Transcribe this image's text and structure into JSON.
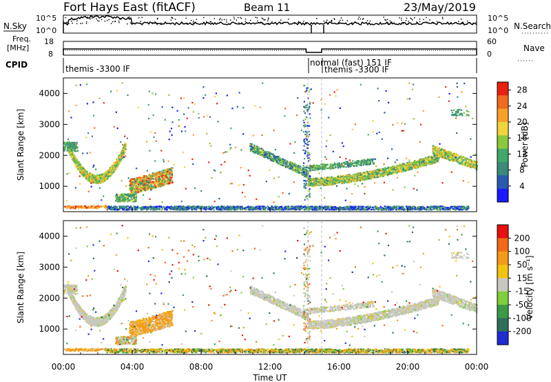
{
  "header": {
    "station": "Fort Hays East (fitACF)",
    "beam": "Beam 11",
    "date": "23/May/2019"
  },
  "status_panels": {
    "nsky_label": "N.Sky",
    "nsearch_label": "N.Search",
    "noise_ticks": [
      "10^5",
      "10^0"
    ],
    "freq_label_line1": "Freq.",
    "freq_label_line2": "[MHz]",
    "freq_ticks": [
      "18",
      "8"
    ],
    "nave_label": "Nave",
    "nave_ticks": [
      "60",
      "0"
    ],
    "cpid_label": "CPID",
    "cpid_segments": [
      {
        "text": "themis -3300 IF",
        "start_hour": 0.0
      },
      {
        "text": "normal (fast) 151 IF",
        "start_hour": 14.2
      },
      {
        "text": "themis -3300 IF",
        "start_hour": 15.0
      }
    ]
  },
  "chart_data": [
    {
      "type": "heatmap",
      "name": "power",
      "ylabel": "Slant Range [km]",
      "xlim_hours": [
        0,
        24
      ],
      "ylim_km": [
        180,
        4500
      ],
      "yticks": [
        1000,
        2000,
        3000,
        4000
      ],
      "colorbar": {
        "label": "Power [dB]",
        "ticks": [
          4,
          8,
          12,
          16,
          20,
          24,
          28
        ],
        "range": [
          0,
          30
        ],
        "colors": [
          "#1a1aff",
          "#2a5ab0",
          "#3b8a7a",
          "#3fa86a",
          "#8cc83c",
          "#f0d43a",
          "#f7a028",
          "#f06a20",
          "#e82010"
        ]
      }
    },
    {
      "type": "heatmap",
      "name": "velocity",
      "ylabel": "Slant Range [km]",
      "xlabel": "Time UT",
      "xticks": [
        "00:00",
        "04:00",
        "08:00",
        "12:00",
        "16:00",
        "20:00",
        "00:00"
      ],
      "xlim_hours": [
        0,
        24
      ],
      "ylim_km": [
        180,
        4500
      ],
      "yticks": [
        1000,
        2000,
        3000,
        4000
      ],
      "colorbar": {
        "label": "Velocity [m s⁻¹]",
        "ticks": [
          "200",
          "100",
          "50",
          "15",
          "-15",
          "-50",
          "-100",
          "-200"
        ],
        "colors": [
          "#1e2cd0",
          "#2f6f5a",
          "#3c9a46",
          "#7fcf3c",
          "#c8c8c0",
          "#f2c40e",
          "#f59a1a",
          "#f26a16",
          "#e81010"
        ]
      }
    }
  ]
}
